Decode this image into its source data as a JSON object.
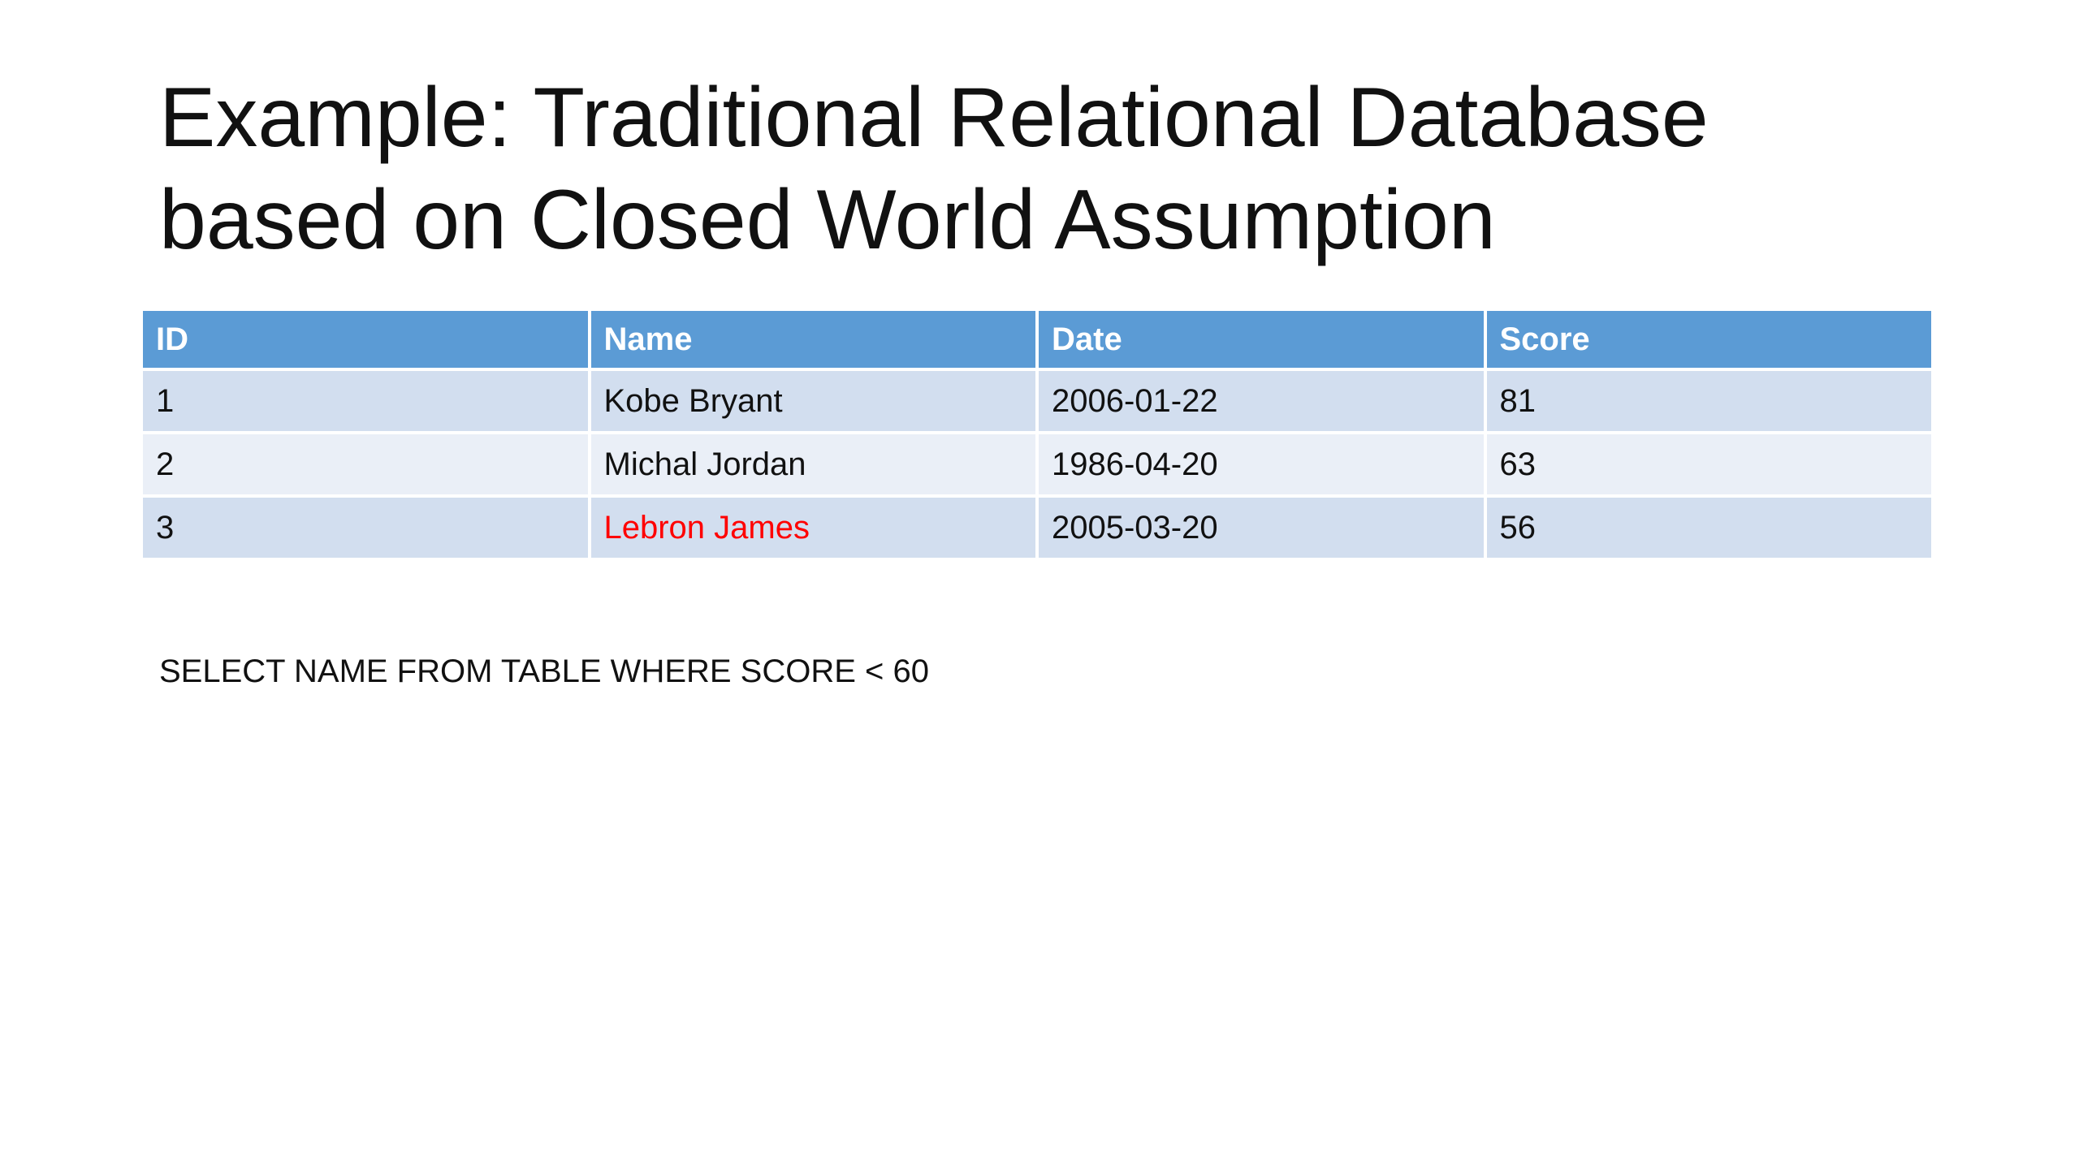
{
  "slide": {
    "title_lines": [
      "Example: Traditional Relational Database",
      "based on Closed World Assumption"
    ],
    "table": {
      "header": [
        "ID",
        "Name",
        "Date",
        "Score"
      ],
      "rows": [
        [
          "1",
          "Kobe Bryant",
          "2006-01-22",
          "81"
        ],
        [
          "2",
          "Michal Jordan",
          "1986-04-20",
          "63"
        ],
        [
          "3",
          "Lebron James",
          "2005-03-20",
          "56"
        ]
      ],
      "highlight_cells": [
        [
          2,
          1
        ]
      ],
      "highlight_color": "#ff0000"
    },
    "query": "SELECT NAME FROM TABLE WHERE SCORE < 60"
  }
}
